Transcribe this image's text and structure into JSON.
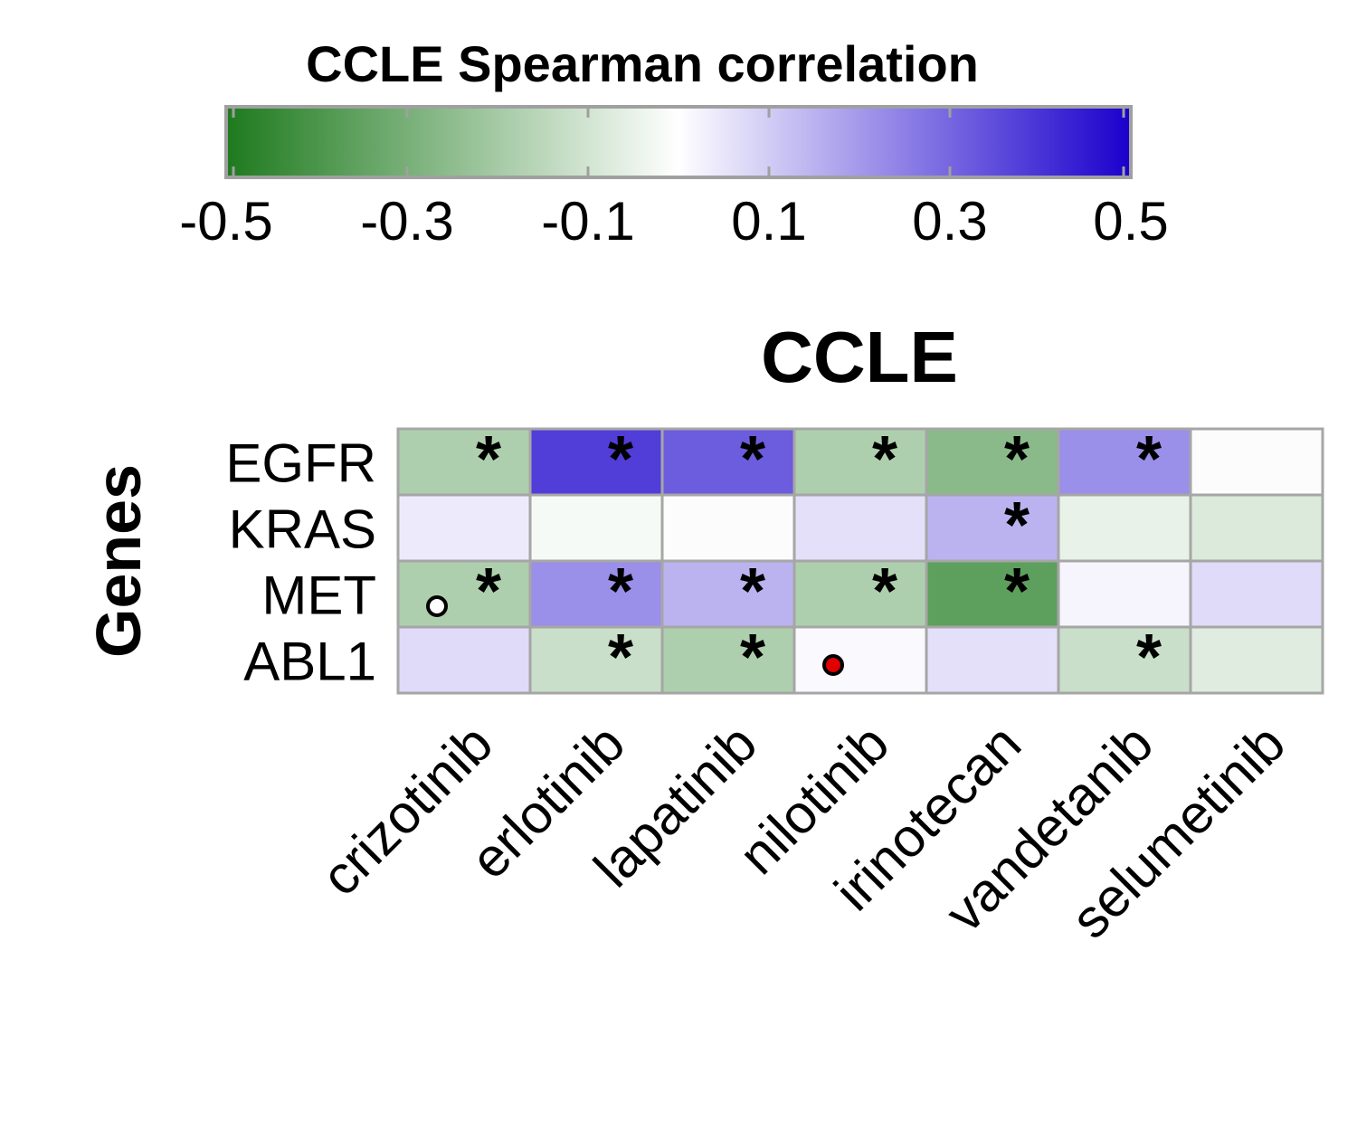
{
  "chart_data": {
    "type": "heatmap",
    "title": "CCLE",
    "ylabel": "Genes",
    "legend": {
      "title": "CCLE Spearman correlation",
      "range": [
        -0.5,
        0.5
      ],
      "ticks": [
        "-0.5",
        "-0.3",
        "-0.1",
        "0.1",
        "0.3",
        "0.5"
      ],
      "colors": {
        "low": "#1e7a1e",
        "mid": "#ffffff",
        "high": "#1a00cc"
      }
    },
    "rows": [
      "EGFR",
      "KRAS",
      "MET",
      "ABL1"
    ],
    "columns": [
      "crizotinib",
      "erlotinib",
      "lapatinib",
      "nilotinib",
      "irinotecan",
      "vandetanib",
      "selumetinib"
    ],
    "values": [
      [
        -0.18,
        0.38,
        0.32,
        -0.18,
        -0.26,
        0.22,
        -0.01
      ],
      [
        0.04,
        -0.02,
        -0.01,
        0.06,
        0.15,
        -0.05,
        -0.08
      ],
      [
        -0.18,
        0.22,
        0.15,
        -0.18,
        -0.36,
        0.02,
        0.07
      ],
      [
        0.07,
        -0.12,
        -0.18,
        0.01,
        0.06,
        -0.12,
        -0.07
      ]
    ],
    "significant": [
      [
        true,
        true,
        true,
        true,
        true,
        true,
        false
      ],
      [
        false,
        false,
        false,
        false,
        true,
        false,
        false
      ],
      [
        true,
        true,
        true,
        true,
        true,
        false,
        false
      ],
      [
        false,
        true,
        true,
        false,
        false,
        true,
        false
      ]
    ],
    "markers": [
      {
        "row": 2,
        "col": 0,
        "style": "open-circle"
      },
      {
        "row": 3,
        "col": 3,
        "style": "red-dot"
      }
    ],
    "significance_symbol": "*",
    "grid": true
  }
}
